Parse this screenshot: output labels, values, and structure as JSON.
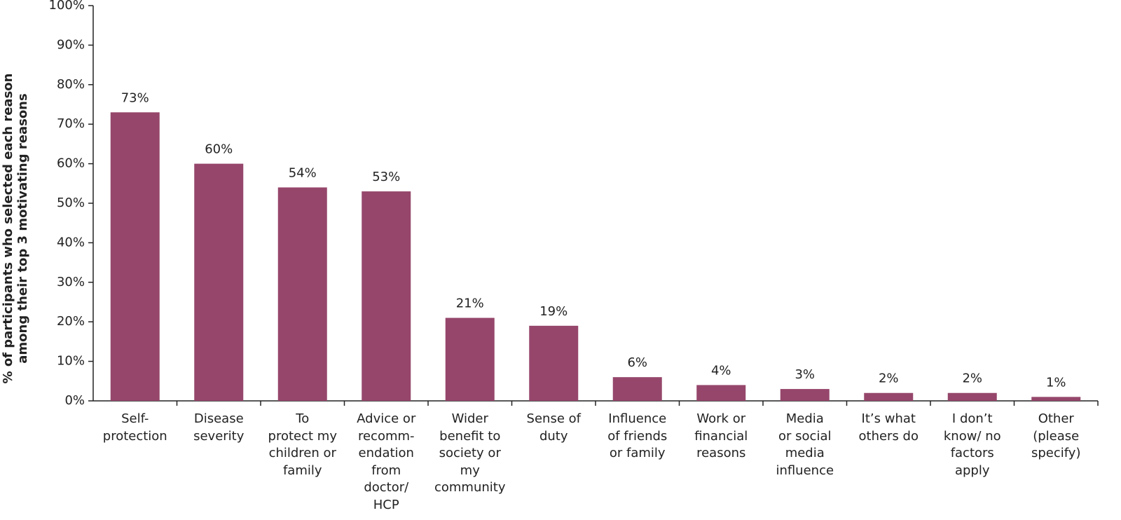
{
  "chart_data": {
    "type": "bar",
    "ylabel": "% of participants who selected each reason\namong their top 3 motivating reasons",
    "categories": [
      "Self-\nprotection",
      "Disease\nseverity",
      "To\nprotect my\nchildren or\nfamily",
      "Advice or\nrecomm-\nendation\nfrom\ndoctor/\nHCP",
      "Wider\nbenefit to\nsociety or\nmy\ncommunity",
      "Sense of\nduty",
      "Influence\nof friends\nor family",
      "Work or\nfinancial\nreasons",
      "Media\nor social\nmedia\ninfluence",
      "It’s what\nothers do",
      "I don’t\nknow/ no\nfactors\napply",
      "Other\n(please\nspecify)"
    ],
    "values": [
      73,
      60,
      54,
      53,
      21,
      19,
      6,
      4,
      3,
      2,
      2,
      1
    ],
    "value_labels": [
      "73%",
      "60%",
      "54%",
      "53%",
      "21%",
      "19%",
      "6%",
      "4%",
      "3%",
      "2%",
      "2%",
      "1%"
    ],
    "color": "#96466b",
    "ylim": [
      0,
      100
    ],
    "yticks": [
      {
        "value": 0,
        "label": "0%"
      },
      {
        "value": 10,
        "label": "10%"
      },
      {
        "value": 20,
        "label": "20%"
      },
      {
        "value": 30,
        "label": "30%"
      },
      {
        "value": 40,
        "label": "40%"
      },
      {
        "value": 50,
        "label": "50%"
      },
      {
        "value": 60,
        "label": "60%"
      },
      {
        "value": 70,
        "label": "70%"
      },
      {
        "value": 80,
        "label": "80%"
      },
      {
        "value": 90,
        "label": "90%"
      },
      {
        "value": 100,
        "label": "100%"
      }
    ],
    "grid": false
  }
}
